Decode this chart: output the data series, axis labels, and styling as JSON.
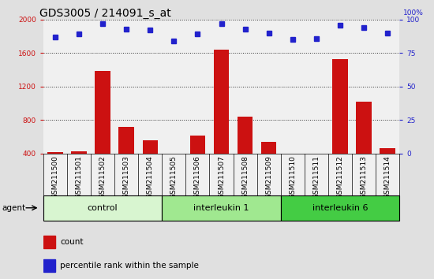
{
  "title": "GDS3005 / 214091_s_at",
  "samples": [
    "GSM211500",
    "GSM211501",
    "GSM211502",
    "GSM211503",
    "GSM211504",
    "GSM211505",
    "GSM211506",
    "GSM211507",
    "GSM211508",
    "GSM211509",
    "GSM211510",
    "GSM211511",
    "GSM211512",
    "GSM211513",
    "GSM211514"
  ],
  "counts": [
    415,
    430,
    1390,
    720,
    560,
    390,
    610,
    1640,
    840,
    540,
    360,
    355,
    1530,
    1020,
    460
  ],
  "percentile_ranks": [
    87,
    89,
    97,
    93,
    92,
    84,
    89,
    97,
    93,
    90,
    85,
    86,
    96,
    94,
    90
  ],
  "groups": [
    {
      "label": "control",
      "start": 0,
      "end": 4,
      "color": "#d8f5d0"
    },
    {
      "label": "interleukin 1",
      "start": 5,
      "end": 9,
      "color": "#a0e890"
    },
    {
      "label": "interleukin 6",
      "start": 10,
      "end": 14,
      "color": "#44cc44"
    }
  ],
  "bar_color": "#cc1111",
  "dot_color": "#2222cc",
  "ylim_left": [
    400,
    2000
  ],
  "ylim_right": [
    0,
    100
  ],
  "yticks_left": [
    400,
    800,
    1200,
    1600,
    2000
  ],
  "yticks_right": [
    0,
    25,
    50,
    75,
    100
  ],
  "background_color": "#e0e0e0",
  "plot_bg": "#f0f0f0",
  "grid_color": "#333333",
  "bar_color_red": "#cc1111",
  "dot_color_blue": "#2222cc",
  "title_fontsize": 10,
  "tick_fontsize": 6.5,
  "label_fontsize": 7.5,
  "group_label_fontsize": 8
}
